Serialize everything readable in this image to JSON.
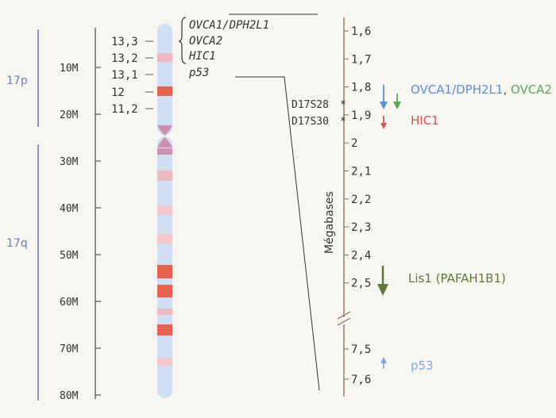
{
  "arms": {
    "p": "17p",
    "q": "17q"
  },
  "scale": {
    "ticks": [
      {
        "label": "10M",
        "value": 10
      },
      {
        "label": "20M",
        "value": 20
      },
      {
        "label": "30M",
        "value": 30
      },
      {
        "label": "40M",
        "value": 40
      },
      {
        "label": "50M",
        "value": 50
      },
      {
        "label": "60M",
        "value": 60
      },
      {
        "label": "70M",
        "value": 70
      },
      {
        "label": "80M",
        "value": 80
      }
    ]
  },
  "bands": [
    "13,3",
    "13,2",
    "13,1",
    "12",
    "11,2"
  ],
  "gene_bracket": [
    "OVCA1/DPH2L1",
    "OVCA2",
    "HIC1",
    "p53"
  ],
  "megabase_axis": {
    "title": "Mégabases",
    "upper_ticks": [
      "1,6",
      "1,7",
      "1,8",
      "1,9",
      "2",
      "2,1",
      "2,2",
      "2,3",
      "2,4",
      "2,5"
    ],
    "lower_ticks": [
      "7,5",
      "7,6"
    ]
  },
  "markers": [
    "D17S28",
    "D17S30"
  ],
  "genes": [
    {
      "label": "OVCA1/DPH2L1",
      "color": "#5b8fd6"
    },
    {
      "label": ", ",
      "color": "#555555"
    },
    {
      "label": "OVCA2",
      "color": "#5aa85a"
    },
    {
      "label": "HIC1",
      "color": "#d9534f"
    },
    {
      "label": "Lis1 (PAFAH1B1)",
      "color": "#5e7a3a"
    },
    {
      "label": "p53",
      "color": "#7fa7e0"
    }
  ],
  "colors": {
    "arm_line": "#8b93cc",
    "arm_text": "#6f7bc0",
    "chromosome": "#cfe0f5",
    "band_red": "#e8604f",
    "band_pink": "#efb7bf",
    "centromere": "#c990b0",
    "axis": "#8a6a55"
  }
}
